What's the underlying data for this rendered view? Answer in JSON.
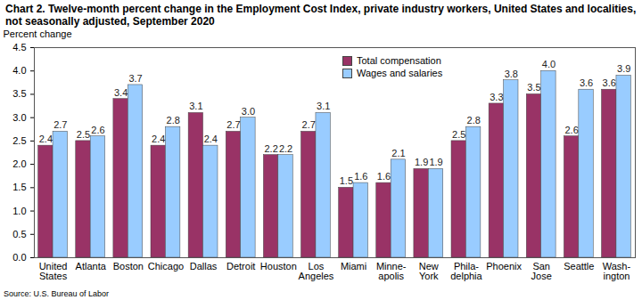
{
  "chart_data": {
    "type": "bar",
    "title": "Chart 2. Twelve-month percent change in the Employment Cost Index, private industry workers, United States and localities, not seasonally adjusted, September 2020",
    "y_label": "Percent change",
    "caption": "Source: U.S. Bureau of Labor",
    "categories": [
      "United\nStates",
      "Atlanta",
      "Boston",
      "Chicago",
      "Dallas",
      "Detroit",
      "Houston",
      "Los\nAngeles",
      "Miami",
      "Minne-\napolis",
      "New\nYork",
      "Phila-\ndelphia",
      "Phoenix",
      "San\nJose",
      "Seattle",
      "Wash-\nington"
    ],
    "series": [
      {
        "name": "Total compensation",
        "color": "#993366",
        "values": [
          2.4,
          2.5,
          3.4,
          2.4,
          3.1,
          2.7,
          2.2,
          2.7,
          1.5,
          1.6,
          1.9,
          2.5,
          3.3,
          3.5,
          2.6,
          3.6
        ],
        "value_labels": [
          "2.4",
          "2.5",
          "3.4",
          "2.4",
          "3.1",
          "2.7",
          "2.2",
          "2.7",
          "1.5",
          "1.6",
          "1.9",
          "2.5",
          "3.3",
          "3.5",
          "2.6",
          "3.6"
        ]
      },
      {
        "name": "Wages and salaries",
        "color": "#99ccff",
        "values": [
          2.7,
          2.6,
          3.7,
          2.8,
          2.4,
          3.0,
          2.2,
          3.1,
          1.6,
          2.1,
          1.9,
          2.8,
          3.8,
          4.0,
          3.6,
          3.9
        ],
        "value_labels": [
          "2.7",
          "2.6",
          "3.7",
          "2.8",
          "2.4",
          "3.0",
          "2.2",
          "3.1",
          "1.6",
          "2.1",
          "1.9",
          "2.8",
          "3.8",
          "4.0",
          "3.6",
          "3.9"
        ]
      }
    ],
    "ylim": [
      0,
      4.5
    ],
    "yticks": [
      {
        "value": 0,
        "label": "0.0"
      },
      {
        "value": 0.5,
        "label": "0.5"
      },
      {
        "value": 1,
        "label": "1.0"
      },
      {
        "value": 1.5,
        "label": "1.5"
      },
      {
        "value": 2,
        "label": "2.0"
      },
      {
        "value": 2.5,
        "label": "2.5"
      },
      {
        "value": 3,
        "label": "3.0"
      },
      {
        "value": 3.5,
        "label": "3.5"
      },
      {
        "value": 4,
        "label": "4.0"
      },
      {
        "value": 4.5,
        "label": "4.5"
      }
    ],
    "grid": false,
    "legend": "top",
    "data_labels": true
  }
}
